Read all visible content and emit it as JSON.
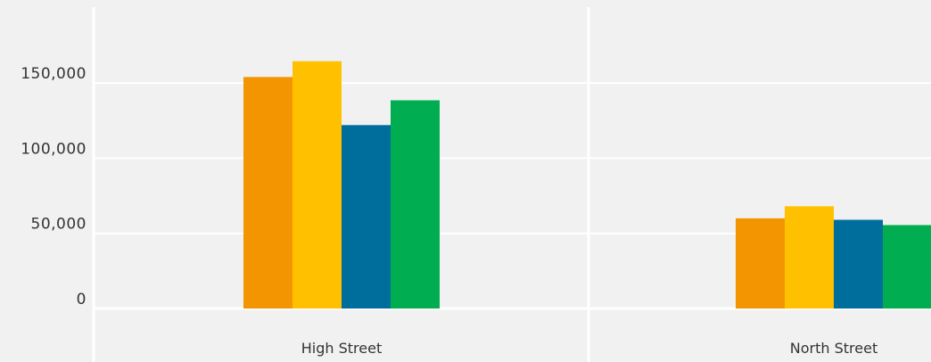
{
  "chart_data": {
    "type": "bar",
    "categories": [
      "High Street",
      "North Street"
    ],
    "series": [
      {
        "values": [
          154000,
          60000
        ],
        "color": "#f29500"
      },
      {
        "values": [
          164500,
          68000
        ],
        "color": "#ffc000"
      },
      {
        "values": [
          122000,
          59000
        ],
        "color": "#006e9d"
      },
      {
        "values": [
          138500,
          55500
        ],
        "color": "#00ad50"
      }
    ],
    "ylim": [
      0,
      200000
    ],
    "yticks": [
      0,
      50000,
      100000,
      150000
    ],
    "ytick_labels": [
      "0",
      "50,000",
      "100,000",
      "150,000"
    ],
    "grid": true,
    "title": "",
    "xlabel": "",
    "ylabel": ""
  },
  "colors": {
    "background": "#f1f1f1",
    "grid": "#ffffff"
  }
}
